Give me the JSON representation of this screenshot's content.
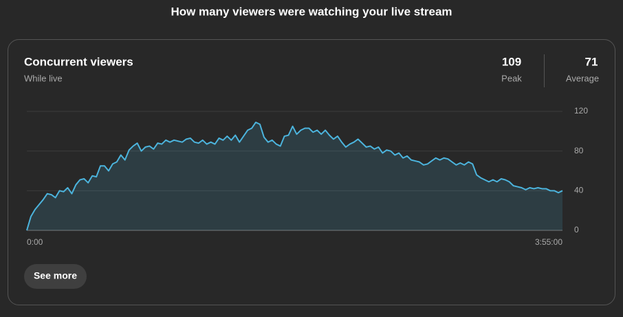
{
  "page": {
    "title": "How many viewers were watching your live stream"
  },
  "card": {
    "title": "Concurrent viewers",
    "subtitle": "While live",
    "stats": [
      {
        "value": 109,
        "label": "Peak"
      },
      {
        "value": 71,
        "label": "Average"
      }
    ],
    "button": "See more"
  },
  "chart_data": {
    "type": "area",
    "categories": [
      "0:00",
      null,
      null,
      null,
      null,
      null,
      null,
      null,
      null,
      null,
      null,
      null,
      null,
      null,
      null,
      null,
      null,
      null,
      null,
      null,
      null,
      null,
      null,
      null,
      null,
      null,
      null,
      null,
      null,
      null,
      null,
      null,
      null,
      null,
      null,
      null,
      null,
      null,
      null,
      null,
      null,
      null,
      null,
      null,
      null,
      null,
      null,
      null,
      null,
      null,
      null,
      null,
      null,
      null,
      null,
      null,
      null,
      null,
      null,
      null,
      null,
      null,
      null,
      null,
      null,
      null,
      null,
      null,
      null,
      null,
      null,
      null,
      null,
      null,
      null,
      null,
      null,
      null,
      null,
      null,
      null,
      null,
      null,
      null,
      null,
      null,
      null,
      null,
      null,
      null,
      null,
      null,
      null,
      null,
      null,
      null,
      null,
      null,
      null,
      null,
      null,
      null,
      null,
      null,
      null,
      null,
      null,
      null,
      null,
      null,
      null,
      null,
      null,
      null,
      null,
      null,
      null,
      null,
      null,
      null,
      null,
      null,
      null,
      null,
      null,
      null,
      null,
      null,
      null,
      null,
      null,
      "3:55:00"
    ],
    "values": [
      0,
      14,
      21,
      26,
      31,
      37,
      36,
      33,
      40,
      39,
      43,
      37,
      46,
      51,
      52,
      48,
      55,
      54,
      65,
      65,
      60,
      67,
      69,
      76,
      71,
      81,
      85,
      88,
      80,
      84,
      85,
      82,
      88,
      87,
      91,
      89,
      91,
      90,
      89,
      92,
      93,
      89,
      88,
      91,
      87,
      89,
      87,
      93,
      91,
      95,
      91,
      96,
      89,
      95,
      101,
      103,
      109,
      107,
      94,
      89,
      91,
      87,
      85,
      95,
      96,
      105,
      97,
      101,
      103,
      103,
      99,
      101,
      97,
      101,
      96,
      92,
      95,
      89,
      84,
      87,
      89,
      92,
      88,
      84,
      85,
      82,
      84,
      78,
      81,
      80,
      76,
      78,
      73,
      75,
      71,
      70,
      69,
      66,
      67,
      70,
      73,
      71,
      73,
      72,
      69,
      66,
      68,
      66,
      69,
      67,
      56,
      53,
      51,
      49,
      51,
      49,
      52,
      51,
      49,
      45,
      44,
      43,
      41,
      43,
      42,
      43,
      42,
      42,
      40,
      40,
      38,
      40
    ],
    "color": "#4cb4dd",
    "ylim": [
      0,
      120
    ],
    "yticks": [
      0,
      40,
      80,
      120
    ],
    "grid": true
  }
}
